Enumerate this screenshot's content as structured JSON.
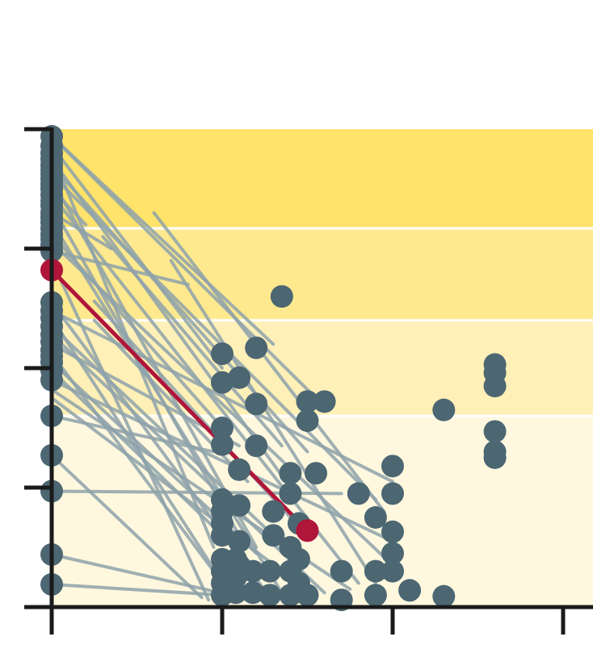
{
  "colors": {
    "background": "#ffffff",
    "band_colors": [
      "#fff8df",
      "#fff0b8",
      "#ffe98f",
      "#ffe36a"
    ],
    "band_separator": "#ffffff",
    "axis": "#1a1a1a",
    "point": "#4c6672",
    "line": "#8ea2aa",
    "highlight": "#b0153a"
  },
  "chart_data": {
    "type": "scatter",
    "title": "",
    "xlabel": "",
    "ylabel": "",
    "xlim": [
      0,
      3
    ],
    "ylim": [
      0,
      4
    ],
    "x_ticks": [
      0,
      1,
      2,
      3
    ],
    "y_ticks": [
      0,
      1,
      2,
      3,
      4
    ],
    "tick_labels_shown": false,
    "background_bands": [
      {
        "from": 0,
        "to": 1.6
      },
      {
        "from": 1.6,
        "to": 2.4
      },
      {
        "from": 2.4,
        "to": 3.17
      },
      {
        "from": 3.17,
        "to": 4
      }
    ],
    "highlight_segment": {
      "start": [
        0,
        2.82
      ],
      "end": [
        1.5,
        0.64
      ]
    },
    "segments": [
      [
        [
          0,
          3.94
        ],
        [
          1.3,
          2.2
        ]
      ],
      [
        [
          0,
          3.94
        ],
        [
          1.55,
          1.75
        ]
      ],
      [
        [
          0,
          3.86
        ],
        [
          1.0,
          2.0
        ]
      ],
      [
        [
          0,
          3.8
        ],
        [
          0.95,
          0.5
        ]
      ],
      [
        [
          0,
          3.75
        ],
        [
          1.35,
          1.1
        ]
      ],
      [
        [
          0,
          3.7
        ],
        [
          1.5,
          1.3
        ]
      ],
      [
        [
          0,
          3.62
        ],
        [
          1.9,
          0.9
        ]
      ],
      [
        [
          0,
          3.58
        ],
        [
          1.2,
          0.5
        ]
      ],
      [
        [
          0,
          3.5
        ],
        [
          0.2,
          3.2
        ]
      ],
      [
        [
          0,
          3.45
        ],
        [
          1.8,
          0.2
        ]
      ],
      [
        [
          0,
          3.36
        ],
        [
          1.1,
          0.6
        ]
      ],
      [
        [
          0,
          3.3
        ],
        [
          0.35,
          3.0
        ]
      ],
      [
        [
          0,
          3.22
        ],
        [
          1.35,
          0.12
        ]
      ],
      [
        [
          0,
          3.12
        ],
        [
          1.0,
          1.5
        ]
      ],
      [
        [
          0,
          3.05
        ],
        [
          2.0,
          0.35
        ]
      ],
      [
        [
          0,
          2.98
        ],
        [
          0.8,
          2.7
        ]
      ],
      [
        [
          0,
          2.9
        ],
        [
          0.92,
          0.06
        ]
      ],
      [
        [
          0,
          2.55
        ],
        [
          1.25,
          0.14
        ]
      ],
      [
        [
          0,
          2.48
        ],
        [
          2.0,
          1.05
        ]
      ],
      [
        [
          0,
          2.42
        ],
        [
          1.05,
          0.1
        ]
      ],
      [
        [
          0,
          2.35
        ],
        [
          1.3,
          0.6
        ]
      ],
      [
        [
          0,
          2.28
        ],
        [
          1.6,
          0.12
        ]
      ],
      [
        [
          0,
          2.2
        ],
        [
          1.1,
          1.35
        ]
      ],
      [
        [
          0,
          2.12
        ],
        [
          0.95,
          0.3
        ]
      ],
      [
        [
          0,
          2.05
        ],
        [
          1.2,
          0.45
        ]
      ],
      [
        [
          0,
          1.98
        ],
        [
          1.0,
          0.6
        ]
      ],
      [
        [
          0,
          1.9
        ],
        [
          2.0,
          0.55
        ]
      ],
      [
        [
          0,
          1.82
        ],
        [
          1.75,
          0.15
        ]
      ],
      [
        [
          0,
          1.75
        ],
        [
          1.4,
          0.25
        ]
      ],
      [
        [
          0,
          1.6
        ],
        [
          0.95,
          1.3
        ]
      ],
      [
        [
          0,
          1.27
        ],
        [
          0.88,
          0.08
        ]
      ],
      [
        [
          0,
          0.97
        ],
        [
          1.7,
          0.95
        ]
      ],
      [
        [
          0,
          0.44
        ],
        [
          1.05,
          0.1
        ]
      ],
      [
        [
          0,
          0.19
        ],
        [
          1.0,
          0.1
        ]
      ],
      [
        [
          0.25,
          2.56
        ],
        [
          1.4,
          0.75
        ]
      ],
      [
        [
          0.3,
          3.1
        ],
        [
          1.35,
          1.35
        ]
      ],
      [
        [
          0.25,
          2.4
        ],
        [
          1.15,
          1.05
        ]
      ],
      [
        [
          0.6,
          3.3
        ],
        [
          1.95,
          0.8
        ]
      ],
      [
        [
          0.7,
          2.9
        ],
        [
          1.9,
          0.2
        ]
      ]
    ],
    "points": [
      [
        0,
        3.94
      ],
      [
        0,
        3.86
      ],
      [
        0,
        3.8
      ],
      [
        0,
        3.75
      ],
      [
        0,
        3.7
      ],
      [
        0,
        3.66
      ],
      [
        0,
        3.62
      ],
      [
        0,
        3.58
      ],
      [
        0,
        3.54
      ],
      [
        0,
        3.5
      ],
      [
        0,
        3.45
      ],
      [
        0,
        3.4
      ],
      [
        0,
        3.36
      ],
      [
        0,
        3.3
      ],
      [
        0,
        3.26
      ],
      [
        0,
        3.22
      ],
      [
        0,
        3.17
      ],
      [
        0,
        3.12
      ],
      [
        0,
        3.08
      ],
      [
        0,
        3.03
      ],
      [
        0,
        2.98
      ],
      [
        0,
        2.55
      ],
      [
        0,
        2.48
      ],
      [
        0,
        2.42
      ],
      [
        0,
        2.35
      ],
      [
        0,
        2.28
      ],
      [
        0,
        2.22
      ],
      [
        0,
        2.15
      ],
      [
        0,
        2.1
      ],
      [
        0,
        2.05
      ],
      [
        0,
        1.98
      ],
      [
        0,
        1.9
      ],
      [
        0,
        1.6
      ],
      [
        0,
        1.27
      ],
      [
        0,
        0.97
      ],
      [
        0,
        0.44
      ],
      [
        0,
        0.19
      ],
      [
        1.0,
        2.12
      ],
      [
        1.0,
        1.88
      ],
      [
        1.0,
        1.5
      ],
      [
        1.0,
        1.36
      ],
      [
        1.0,
        0.9
      ],
      [
        1.0,
        0.8
      ],
      [
        1.0,
        0.7
      ],
      [
        1.0,
        0.6
      ],
      [
        1.0,
        0.4
      ],
      [
        1.0,
        0.3
      ],
      [
        1.0,
        0.2
      ],
      [
        1.0,
        0.1
      ],
      [
        1.08,
        0.4
      ],
      [
        1.08,
        0.25
      ],
      [
        1.08,
        0.12
      ],
      [
        1.1,
        1.92
      ],
      [
        1.1,
        1.15
      ],
      [
        1.1,
        0.85
      ],
      [
        1.1,
        0.55
      ],
      [
        1.1,
        0.35
      ],
      [
        1.18,
        0.3
      ],
      [
        1.18,
        0.12
      ],
      [
        1.2,
        2.17
      ],
      [
        1.2,
        1.7
      ],
      [
        1.2,
        1.35
      ],
      [
        1.28,
        0.3
      ],
      [
        1.28,
        0.1
      ],
      [
        1.3,
        0.8
      ],
      [
        1.3,
        0.6
      ],
      [
        1.35,
        2.6
      ],
      [
        1.4,
        1.12
      ],
      [
        1.4,
        0.95
      ],
      [
        1.4,
        0.5
      ],
      [
        1.4,
        0.3
      ],
      [
        1.4,
        0.1
      ],
      [
        1.45,
        0.7
      ],
      [
        1.45,
        0.4
      ],
      [
        1.45,
        0.2
      ],
      [
        1.5,
        1.72
      ],
      [
        1.5,
        1.56
      ],
      [
        1.5,
        0.1
      ],
      [
        1.55,
        1.12
      ],
      [
        1.6,
        1.72
      ],
      [
        1.7,
        0.3
      ],
      [
        1.7,
        0.06
      ],
      [
        1.8,
        0.95
      ],
      [
        1.9,
        0.75
      ],
      [
        1.9,
        0.3
      ],
      [
        1.9,
        0.1
      ],
      [
        2.0,
        1.18
      ],
      [
        2.0,
        0.95
      ],
      [
        2.0,
        0.63
      ],
      [
        2.0,
        0.45
      ],
      [
        2.0,
        0.3
      ],
      [
        2.1,
        0.14
      ],
      [
        2.3,
        0.09
      ],
      [
        2.3,
        1.65
      ],
      [
        2.6,
        2.03
      ],
      [
        2.6,
        1.96
      ],
      [
        2.6,
        1.85
      ],
      [
        2.6,
        1.47
      ],
      [
        2.6,
        1.3
      ],
      [
        2.6,
        1.25
      ]
    ],
    "highlight_points": [
      [
        0,
        2.82
      ],
      [
        1.5,
        0.64
      ]
    ]
  }
}
